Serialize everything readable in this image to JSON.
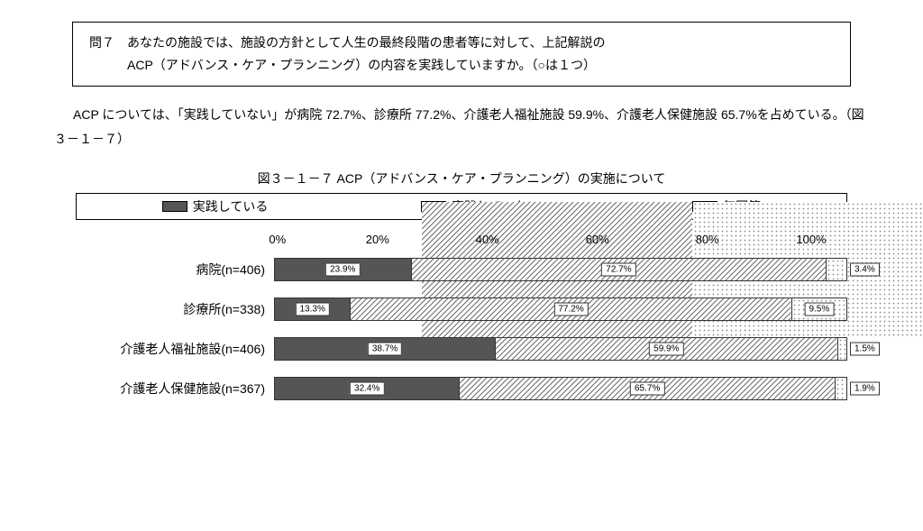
{
  "question": {
    "line1": "問７　あなたの施設では、施設の方針として人生の最終段階の患者等に対して、上記解説の",
    "line2": "ACP（アドバンス・ケア・プランニング）の内容を実践していますか。（○は１つ）"
  },
  "summary": "ACP については、「実践していない」が病院 72.7%、診療所 77.2%、介護老人福祉施設 59.9%、介護老人保健施設 65.7%を占めている。（図３－１－７）",
  "chart": {
    "title": "図３－１－７  ACP（アドバンス・ケア・プランニング）の実施について",
    "type": "stacked-bar-horizontal",
    "legend": [
      {
        "label": "実践している",
        "fill": "solid",
        "color": "#555555"
      },
      {
        "label": "実践していない",
        "fill": "hatch",
        "color": "#555555"
      },
      {
        "label": "無回答",
        "fill": "dots",
        "color": "#888888"
      }
    ],
    "axis": {
      "ticks": [
        0,
        20,
        40,
        60,
        80,
        100
      ],
      "tick_labels": [
        "0%",
        "20%",
        "40%",
        "60%",
        "80%",
        "100%"
      ],
      "grid_color": "#dddddd"
    },
    "label_outside_threshold": 6.0,
    "categories": [
      {
        "label": "病院(n=406)",
        "values": [
          23.9,
          72.7,
          3.4
        ]
      },
      {
        "label": "診療所(n=338)",
        "values": [
          13.3,
          77.2,
          9.5
        ]
      },
      {
        "label": "介護老人福祉施設(n=406)",
        "values": [
          38.7,
          59.9,
          1.5
        ]
      },
      {
        "label": "介護老人保健施設(n=367)",
        "values": [
          32.4,
          65.7,
          1.9
        ]
      }
    ],
    "font": {
      "title_size": 14,
      "label_size": 14,
      "value_size": 10
    },
    "background_color": "#ffffff"
  }
}
